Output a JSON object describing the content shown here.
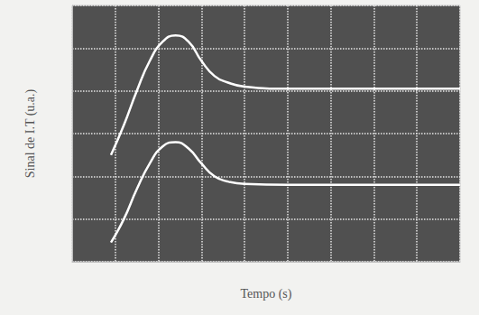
{
  "chart_data": {
    "type": "line",
    "x_label": "Tempo (s)",
    "y_label": "Sinal de I.T (u.a.)",
    "x": [
      0.9,
      1.2,
      1.5,
      1.8,
      2.1,
      2.4,
      2.7,
      3.0,
      3.3,
      3.6,
      4.0,
      5.0,
      6.0,
      7.0,
      8.0,
      9.0
    ],
    "series": [
      {
        "color": "#ffffff",
        "values": [
          2.5,
          3.2,
          4.0,
          4.7,
          5.15,
          5.3,
          5.15,
          4.7,
          4.35,
          4.2,
          4.1,
          4.05,
          4.05,
          4.05,
          4.05,
          4.05
        ]
      },
      {
        "color": "#ffffff",
        "values": [
          0.45,
          1.0,
          1.7,
          2.3,
          2.7,
          2.8,
          2.65,
          2.3,
          2.0,
          1.88,
          1.82,
          1.8,
          1.8,
          1.8,
          1.8,
          1.8
        ]
      }
    ],
    "xlim": [
      0,
      9
    ],
    "xticks": [
      0,
      1,
      2,
      3,
      4,
      5,
      6,
      7,
      8,
      9
    ],
    "ylim": [
      0,
      6
    ],
    "yticks": [
      0,
      1,
      2,
      3,
      4,
      5,
      6
    ],
    "grid": true,
    "tick_labels": false
  }
}
